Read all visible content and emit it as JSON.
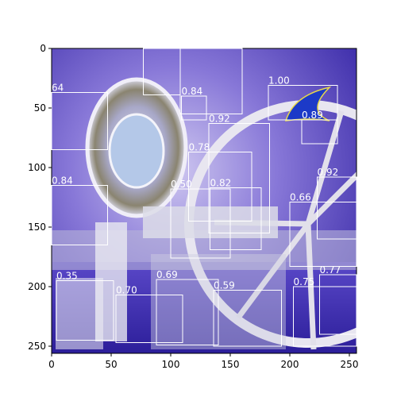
{
  "chart_data": {
    "type": "scatter",
    "title": "",
    "xlabel": "",
    "ylabel": "",
    "xlim": [
      0,
      256
    ],
    "ylim": [
      256,
      0
    ],
    "x_ticks": [
      "0",
      "50",
      "100",
      "150",
      "200",
      "250"
    ],
    "y_ticks": [
      "0",
      "50",
      "100",
      "150",
      "200",
      "250"
    ],
    "grid": false,
    "boxes": [
      {
        "score": "64",
        "x0": 0,
        "y0": 37,
        "x1": 47,
        "y1": 85
      },
      {
        "score": "0.84",
        "x0": 77,
        "y0": 0,
        "x1": 108,
        "y1": 39
      },
      {
        "score": "0.84",
        "x0": 108,
        "y0": 0,
        "x1": 160,
        "y1": 55
      },
      {
        "score": "0.84",
        "x0": 109,
        "y0": 40,
        "x1": 130,
        "y1": 60
      },
      {
        "score": "1.00",
        "x0": 182,
        "y0": 31,
        "x1": 240,
        "y1": 60
      },
      {
        "score": "0.89",
        "x0": 210,
        "y0": 60,
        "x1": 240,
        "y1": 80
      },
      {
        "score": "0.92",
        "x0": 132,
        "y0": 63,
        "x1": 183,
        "y1": 155
      },
      {
        "score": "0.78",
        "x0": 115,
        "y0": 87,
        "x1": 168,
        "y1": 145
      },
      {
        "score": "0.82",
        "x0": 133,
        "y0": 117,
        "x1": 176,
        "y1": 169
      },
      {
        "score": "0.84",
        "x0": 0,
        "y0": 115,
        "x1": 47,
        "y1": 165
      },
      {
        "score": "0.50",
        "x0": 100,
        "y0": 118,
        "x1": 150,
        "y1": 176
      },
      {
        "score": "0.92",
        "x0": 223,
        "y0": 108,
        "x1": 256,
        "y1": 160
      },
      {
        "score": "0.66",
        "x0": 200,
        "y0": 129,
        "x1": 256,
        "y1": 183
      },
      {
        "score": "0.77",
        "x0": 225,
        "y0": 190,
        "x1": 256,
        "y1": 240
      },
      {
        "score": "0.35",
        "x0": 4,
        "y0": 195,
        "x1": 52,
        "y1": 245
      },
      {
        "score": "0.70",
        "x0": 54,
        "y0": 207,
        "x1": 110,
        "y1": 247
      },
      {
        "score": "0.69",
        "x0": 88,
        "y0": 194,
        "x1": 140,
        "y1": 249
      },
      {
        "score": "0.59",
        "x0": 136,
        "y0": 203,
        "x1": 193,
        "y1": 250
      },
      {
        "score": "0.75",
        "x0": 203,
        "y0": 200,
        "x1": 256,
        "y1": 250
      }
    ]
  }
}
